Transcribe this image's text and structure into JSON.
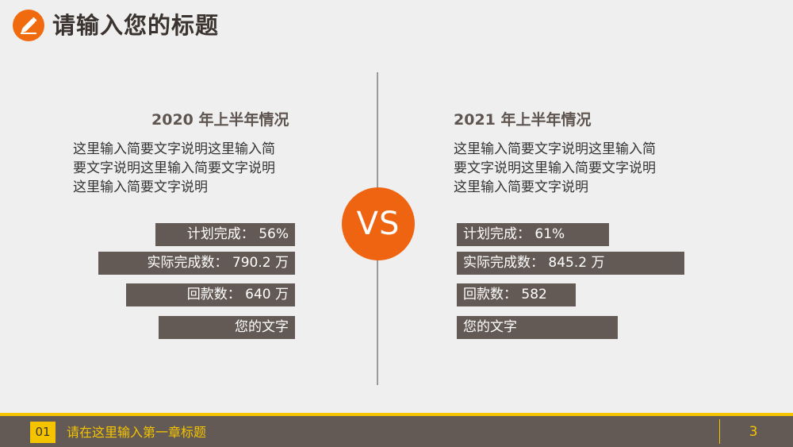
{
  "header": {
    "title": "请输入您的标题",
    "icon": "pencil-icon",
    "accent_color": "#f06a10"
  },
  "vs_label": "VS",
  "left": {
    "heading": "2020 年上半年情况",
    "description_lines": [
      "这里输入简要文字说明这里输入简",
      "要文字说明这里输入简要文字说明",
      "这里输入简要文字说明"
    ],
    "bars": [
      {
        "label": "计划完成：  56%"
      },
      {
        "label": "实际完成数：  790.2 万"
      },
      {
        "label": "回款数：  640 万"
      },
      {
        "label": "您的文字"
      }
    ]
  },
  "right": {
    "heading": "2021 年上半年情况",
    "description_lines": [
      "这里输入简要文字说明这里输入简",
      "要文字说明这里输入简要文字说明",
      "这里输入简要文字说明"
    ],
    "bars": [
      {
        "label": "计划完成：  61%"
      },
      {
        "label": "实际完成数：  845.2 万"
      },
      {
        "label": "回款数：  582"
      },
      {
        "label": "您的文字"
      }
    ]
  },
  "footer": {
    "chapter_number": "01",
    "chapter_title": "请在这里输入第一章标题",
    "page_number": "3",
    "accent_color": "#f5c400",
    "bar_color": "#645a55"
  }
}
